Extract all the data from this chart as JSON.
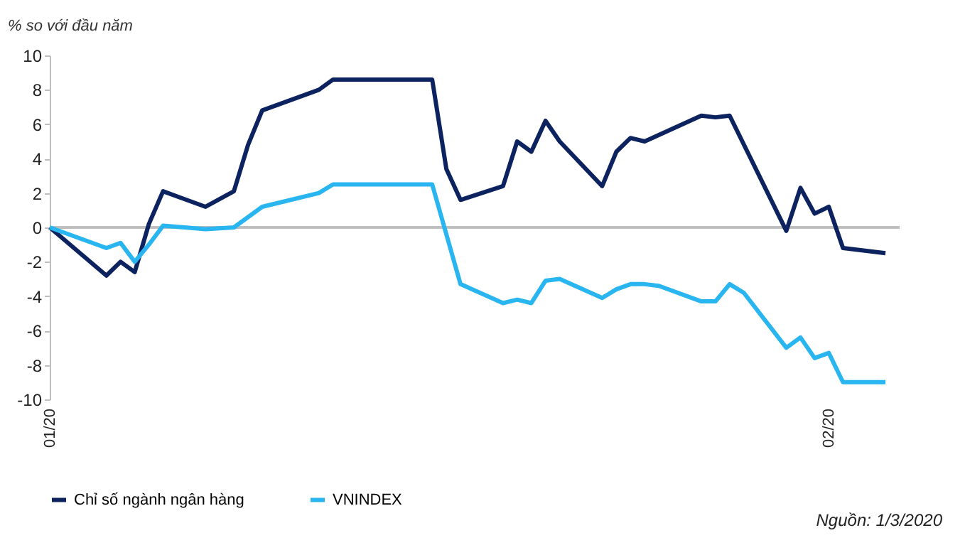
{
  "chart_data": {
    "type": "line",
    "ylabel": "% so với đầu năm",
    "xlim": [
      "2020-01-01",
      "2020-03-01"
    ],
    "xticks": [
      {
        "value": "2020-01-01",
        "label": "01/20"
      },
      {
        "value": "2020-02-25",
        "label": "02/20"
      }
    ],
    "ylim": [
      -10,
      10
    ],
    "yticks": [
      -10,
      -8,
      -6,
      -4,
      -2,
      0,
      2,
      4,
      6,
      8,
      10
    ],
    "grid": false,
    "legend": "bottom",
    "marker": "none",
    "line_style": "solid",
    "ref_lines": [
      {
        "axis": "y",
        "value": 0,
        "color": "#bfbfbf"
      }
    ],
    "annotations": [
      "Nguồn: 1/3/2020"
    ],
    "series": [
      {
        "name": "Chỉ số ngành ngân hàng",
        "color": "#0d2360",
        "x": [
          "2020-01-01",
          "2020-01-05",
          "2020-01-06",
          "2020-01-07",
          "2020-01-08",
          "2020-01-09",
          "2020-01-12",
          "2020-01-14",
          "2020-01-15",
          "2020-01-16",
          "2020-01-20",
          "2020-01-21",
          "2020-01-28",
          "2020-01-29",
          "2020-01-30",
          "2020-02-02",
          "2020-02-03",
          "2020-02-04",
          "2020-02-05",
          "2020-02-06",
          "2020-02-09",
          "2020-02-10",
          "2020-02-11",
          "2020-02-12",
          "2020-02-16",
          "2020-02-17",
          "2020-02-18",
          "2020-02-22",
          "2020-02-23",
          "2020-02-24",
          "2020-02-25",
          "2020-02-26",
          "2020-02-29"
        ],
        "values": [
          0,
          -2.8,
          -2.0,
          -2.6,
          0.2,
          2.1,
          1.2,
          2.1,
          4.8,
          6.8,
          8.0,
          8.6,
          8.6,
          3.4,
          1.6,
          2.4,
          5.0,
          4.4,
          6.2,
          5.0,
          2.4,
          4.4,
          5.2,
          5.0,
          6.5,
          6.4,
          6.5,
          -0.2,
          2.3,
          0.8,
          1.2,
          -1.2,
          -1.5
        ]
      },
      {
        "name": "VNINDEX",
        "color": "#29b5f0",
        "x": [
          "2020-01-01",
          "2020-01-05",
          "2020-01-06",
          "2020-01-07",
          "2020-01-08",
          "2020-01-09",
          "2020-01-12",
          "2020-01-14",
          "2020-01-15",
          "2020-01-16",
          "2020-01-20",
          "2020-01-21",
          "2020-01-28",
          "2020-01-30",
          "2020-02-02",
          "2020-02-03",
          "2020-02-04",
          "2020-02-05",
          "2020-02-06",
          "2020-02-09",
          "2020-02-10",
          "2020-02-11",
          "2020-02-12",
          "2020-02-13",
          "2020-02-16",
          "2020-02-17",
          "2020-02-18",
          "2020-02-19",
          "2020-02-22",
          "2020-02-23",
          "2020-02-24",
          "2020-02-25",
          "2020-02-26",
          "2020-02-29"
        ],
        "values": [
          0,
          -1.2,
          -0.9,
          -2.0,
          -1.0,
          0.1,
          -0.1,
          0.0,
          0.6,
          1.2,
          2.0,
          2.5,
          2.5,
          -3.3,
          -4.4,
          -4.2,
          -4.4,
          -3.1,
          -3.0,
          -4.1,
          -3.6,
          -3.3,
          -3.3,
          -3.4,
          -4.3,
          -4.3,
          -3.3,
          -3.8,
          -7.0,
          -6.4,
          -7.6,
          -7.3,
          -9.0,
          -9.0
        ]
      }
    ]
  }
}
